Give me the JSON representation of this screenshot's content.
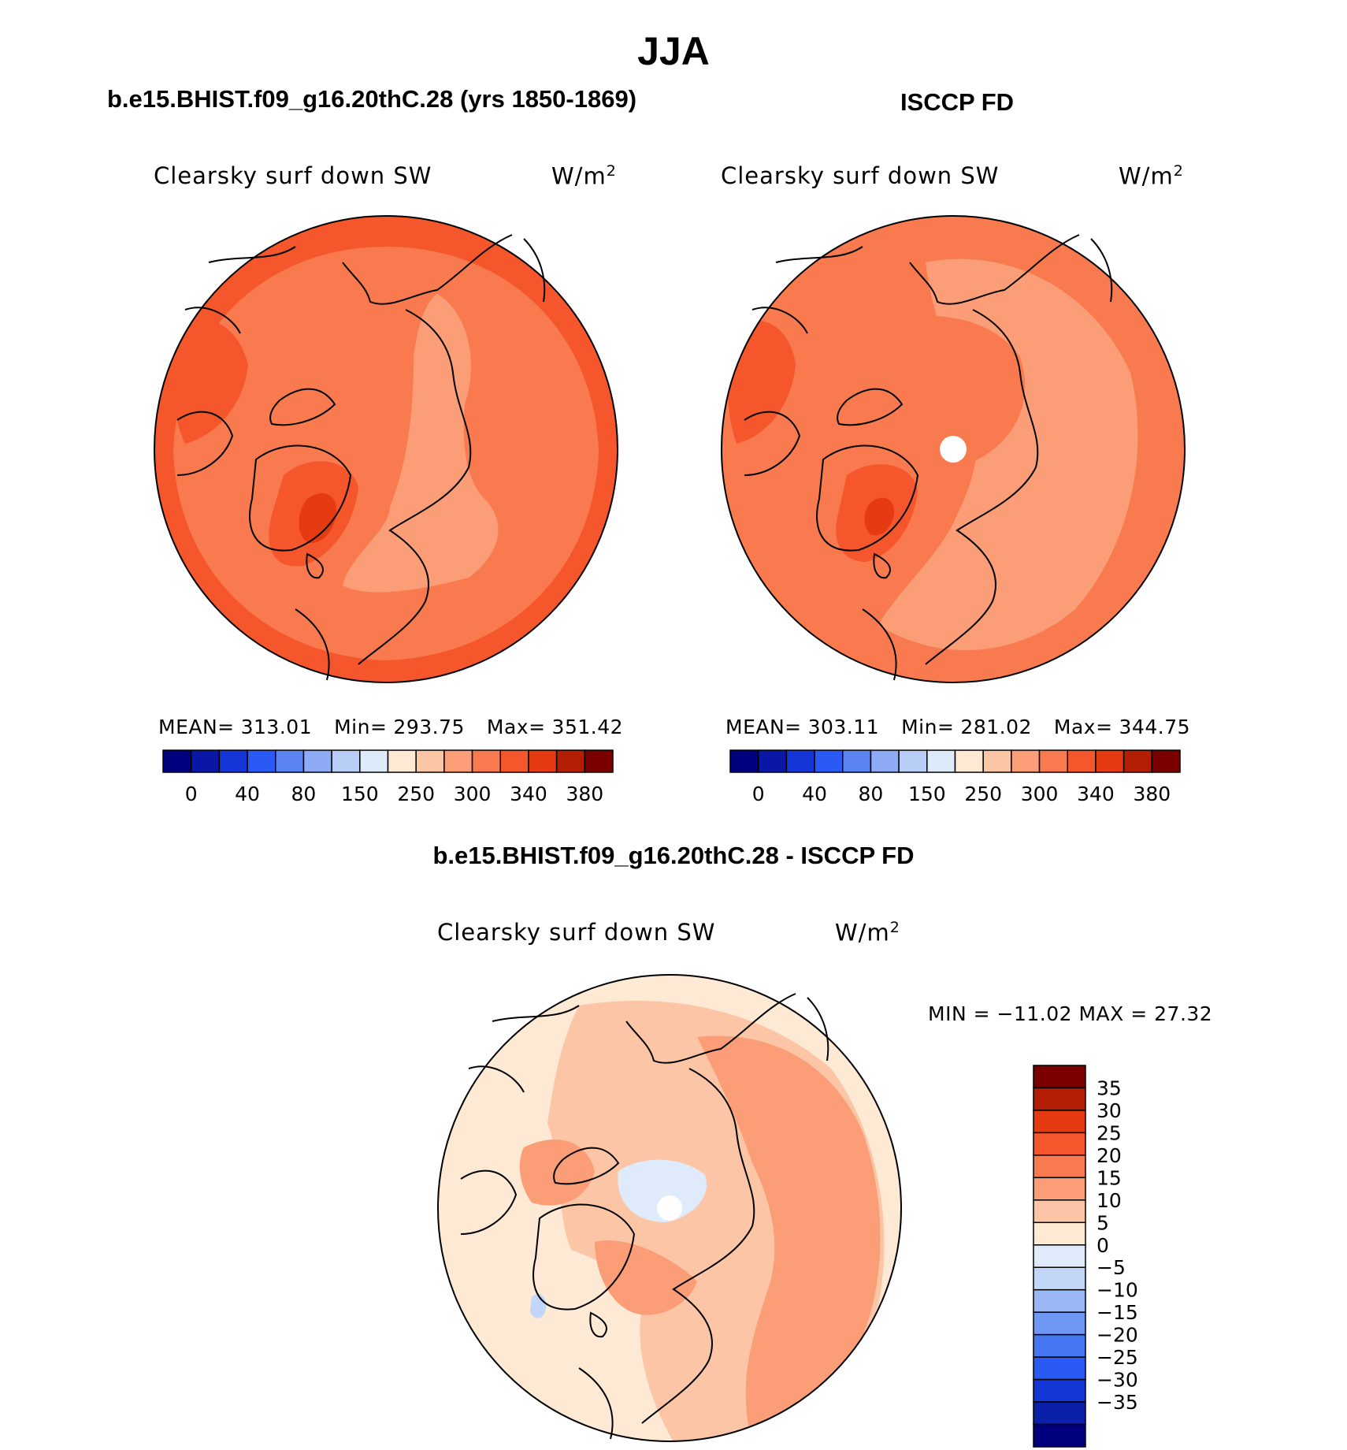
{
  "title": "JJA",
  "colors": {
    "palette_levels": [
      "#00007f",
      "#0a17a6",
      "#1436d6",
      "#2a5af5",
      "#5b84f2",
      "#8eaaf4",
      "#b8cdf6",
      "#dceaf9",
      "#fde9d4",
      "#fcc6a6",
      "#fb9d77",
      "#f97a4e",
      "#f5562c",
      "#e63a12",
      "#b41e05",
      "#7a0000"
    ],
    "diff_levels": [
      "#00007f",
      "#0a20a8",
      "#1436d6",
      "#2a5af5",
      "#4577f2",
      "#6f97f4",
      "#9ab8f6",
      "#c2d6f8",
      "#dfeafa",
      "#fde9d4",
      "#fcc6a6",
      "#fb9d77",
      "#f97a4e",
      "#f5562c",
      "#e63a12",
      "#b41e05",
      "#7a0000"
    ],
    "coastline": "#000000"
  },
  "panels": [
    {
      "id": "model",
      "header": "b.e15.BHIST.f09_g16.20thC.28 (yrs 1850-1869)",
      "variable": "Clearsky surf down SW",
      "units": "W/m",
      "units_sup": "2",
      "stats": {
        "mean_label": "MEAN=",
        "mean": "313.01",
        "min_label": "Min=",
        "min": "293.75",
        "max_label": "Max=",
        "max": "351.42"
      },
      "colorbar_ticks": [
        "0",
        "40",
        "80",
        "150",
        "250",
        "300",
        "340",
        "380"
      ]
    },
    {
      "id": "obs",
      "header": "ISCCP FD",
      "variable": "Clearsky surf down SW",
      "units": "W/m",
      "units_sup": "2",
      "stats": {
        "mean_label": "MEAN=",
        "mean": "303.11",
        "min_label": "Min=",
        "min": "281.02",
        "max_label": "Max=",
        "max": "344.75"
      },
      "colorbar_ticks": [
        "0",
        "40",
        "80",
        "150",
        "250",
        "300",
        "340",
        "380"
      ]
    }
  ],
  "difference": {
    "header": "b.e15.BHIST.f09_g16.20thC.28 - ISCCP FD",
    "variable": "Clearsky surf down SW",
    "units": "W/m",
    "units_sup": "2",
    "minmax": {
      "min_label": "MIN =",
      "min": "−11.02",
      "max_label": "MAX =",
      "max": "27.32"
    },
    "colorbar_ticks": [
      "35",
      "30",
      "25",
      "20",
      "15",
      "10",
      "5",
      "0",
      "−5",
      "−10",
      "−15",
      "−20",
      "−25",
      "−30",
      "−35"
    ]
  },
  "chart_data": [
    {
      "type": "heatmap",
      "projection": "north-polar-stereographic",
      "title": "Clearsky surf down SW",
      "units": "W/m2",
      "levels": [
        0,
        40,
        80,
        150,
        250,
        300,
        340,
        380
      ],
      "mean": 313.01,
      "min": 293.75,
      "max": 351.42
    },
    {
      "type": "heatmap",
      "projection": "north-polar-stereographic",
      "title": "Clearsky surf down SW",
      "units": "W/m2",
      "levels": [
        0,
        40,
        80,
        150,
        250,
        300,
        340,
        380
      ],
      "mean": 303.11,
      "min": 281.02,
      "max": 344.75
    },
    {
      "type": "heatmap",
      "projection": "north-polar-stereographic",
      "title": "Clearsky surf down SW",
      "units": "W/m2",
      "levels": [
        -35,
        -30,
        -25,
        -20,
        -15,
        -10,
        -5,
        0,
        5,
        10,
        15,
        20,
        25,
        30,
        35
      ],
      "min": -11.02,
      "max": 27.32
    }
  ]
}
